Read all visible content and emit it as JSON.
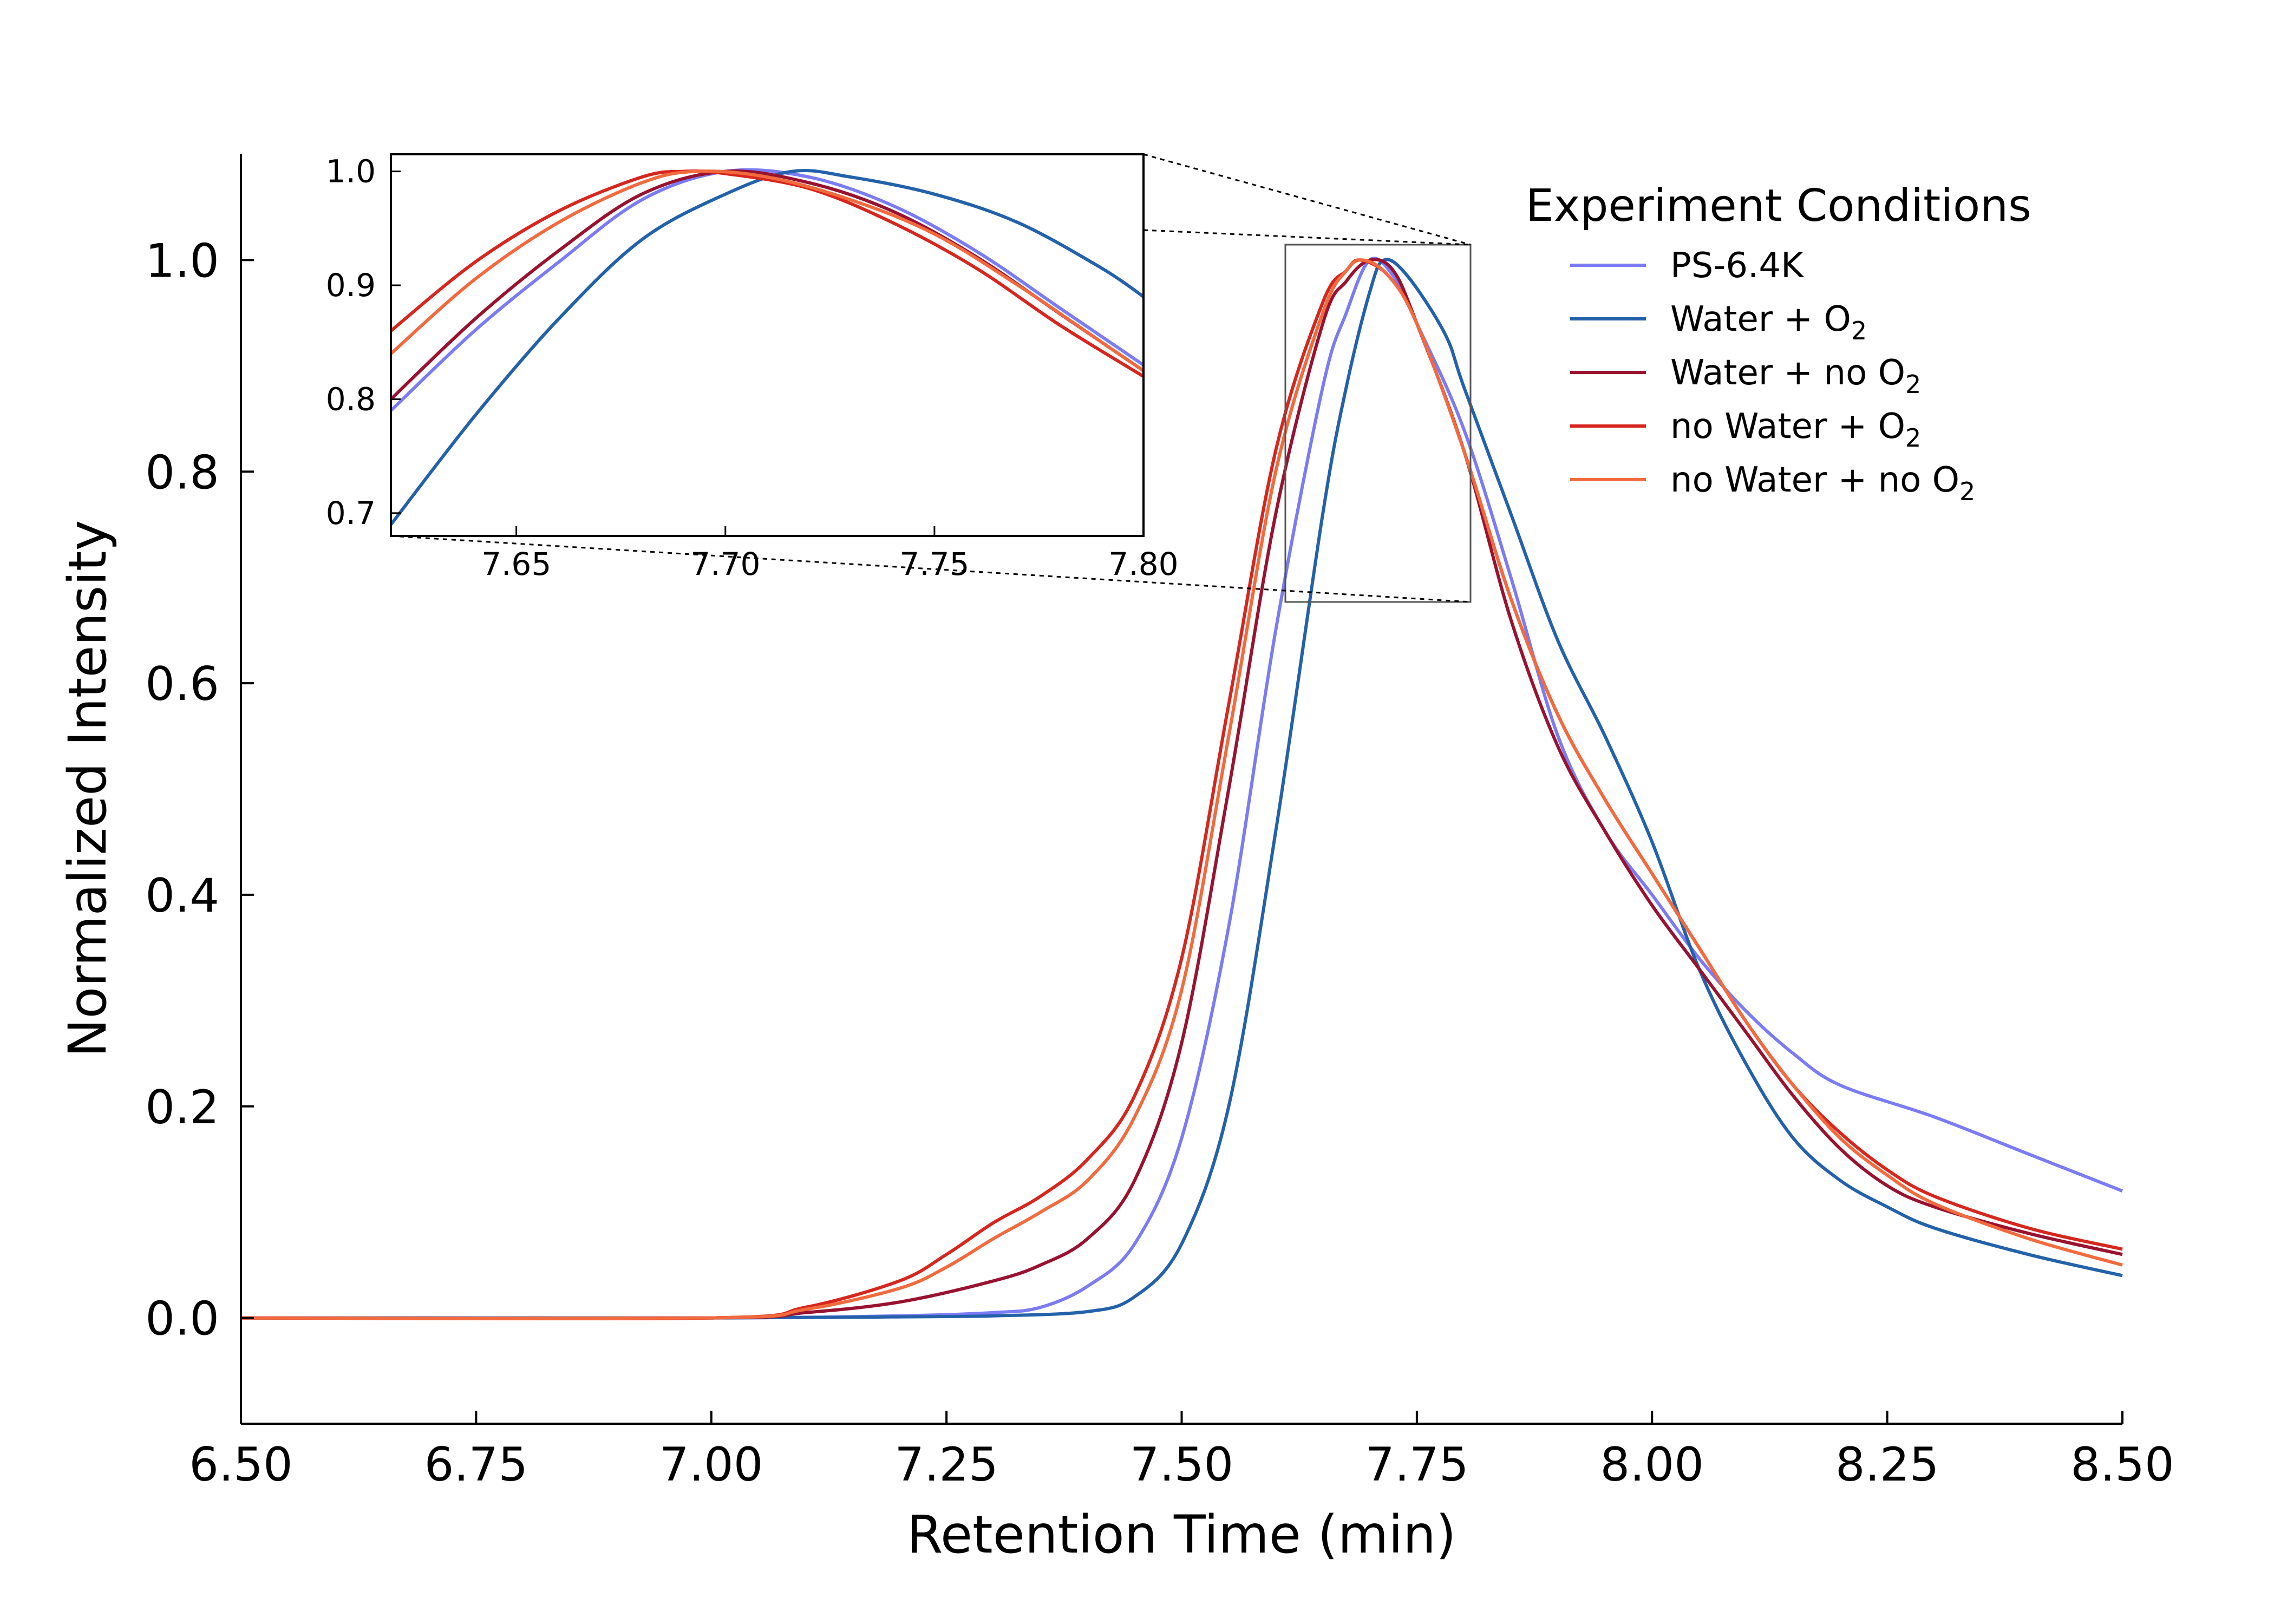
{
  "chart_data": {
    "type": "line",
    "xlabel": "Retention Time (min)",
    "ylabel": "Normalized Intensity",
    "xlim": [
      6.5,
      8.5
    ],
    "ylim": [
      -0.1,
      1.1
    ],
    "xticks": [
      "6.50",
      "6.75",
      "7.00",
      "7.25",
      "7.50",
      "7.75",
      "8.00",
      "8.25",
      "8.50"
    ],
    "yticks": [
      "0.0",
      "0.2",
      "0.4",
      "0.6",
      "0.8",
      "1.0"
    ],
    "grid": false,
    "legend": {
      "title": "Experiment Conditions",
      "placement": "top-right",
      "entries": [
        {
          "main": "PS-6.4K",
          "sub": ""
        },
        {
          "main": "Water + O",
          "sub": "2"
        },
        {
          "main": "Water + no O",
          "sub": "2"
        },
        {
          "main": "no Water + O",
          "sub": "2"
        },
        {
          "main": "no Water + no O",
          "sub": "2"
        }
      ]
    },
    "series": [
      {
        "color": "#7b7bf5",
        "points": [
          [
            6.5,
            0.0
          ],
          [
            7.0,
            0.0
          ],
          [
            7.2,
            0.002
          ],
          [
            7.3,
            0.005
          ],
          [
            7.35,
            0.01
          ],
          [
            7.4,
            0.03
          ],
          [
            7.45,
            0.07
          ],
          [
            7.5,
            0.17
          ],
          [
            7.55,
            0.37
          ],
          [
            7.6,
            0.65
          ],
          [
            7.65,
            0.88
          ],
          [
            7.675,
            0.95
          ],
          [
            7.7,
            1.0
          ],
          [
            7.725,
            0.985
          ],
          [
            7.75,
            0.94
          ],
          [
            7.8,
            0.84
          ],
          [
            7.85,
            0.7
          ],
          [
            7.9,
            0.55
          ],
          [
            7.95,
            0.46
          ],
          [
            8.0,
            0.4
          ],
          [
            8.05,
            0.34
          ],
          [
            8.1,
            0.29
          ],
          [
            8.15,
            0.25
          ],
          [
            8.2,
            0.22
          ],
          [
            8.3,
            0.19
          ],
          [
            8.4,
            0.155
          ],
          [
            8.5,
            0.12
          ]
        ]
      },
      {
        "color": "#2461ab",
        "points": [
          [
            6.5,
            0.0
          ],
          [
            7.0,
            0.0
          ],
          [
            7.2,
            0.001
          ],
          [
            7.3,
            0.002
          ],
          [
            7.4,
            0.006
          ],
          [
            7.45,
            0.02
          ],
          [
            7.5,
            0.07
          ],
          [
            7.55,
            0.2
          ],
          [
            7.6,
            0.46
          ],
          [
            7.65,
            0.76
          ],
          [
            7.675,
            0.88
          ],
          [
            7.7,
            0.97
          ],
          [
            7.715,
            1.0
          ],
          [
            7.74,
            0.985
          ],
          [
            7.78,
            0.93
          ],
          [
            7.8,
            0.88
          ],
          [
            7.85,
            0.76
          ],
          [
            7.9,
            0.64
          ],
          [
            7.95,
            0.55
          ],
          [
            8.0,
            0.45
          ],
          [
            8.05,
            0.33
          ],
          [
            8.1,
            0.24
          ],
          [
            8.15,
            0.17
          ],
          [
            8.2,
            0.13
          ],
          [
            8.25,
            0.105
          ],
          [
            8.3,
            0.085
          ],
          [
            8.4,
            0.06
          ],
          [
            8.5,
            0.04
          ]
        ]
      },
      {
        "color": "#99122f",
        "points": [
          [
            6.5,
            0.0
          ],
          [
            7.0,
            0.0
          ],
          [
            7.1,
            0.005
          ],
          [
            7.2,
            0.015
          ],
          [
            7.3,
            0.035
          ],
          [
            7.35,
            0.05
          ],
          [
            7.4,
            0.075
          ],
          [
            7.45,
            0.13
          ],
          [
            7.5,
            0.26
          ],
          [
            7.55,
            0.5
          ],
          [
            7.6,
            0.76
          ],
          [
            7.65,
            0.94
          ],
          [
            7.675,
            0.98
          ],
          [
            7.7,
            1.0
          ],
          [
            7.725,
            0.99
          ],
          [
            7.75,
            0.94
          ],
          [
            7.8,
            0.82
          ],
          [
            7.85,
            0.66
          ],
          [
            7.9,
            0.54
          ],
          [
            7.95,
            0.46
          ],
          [
            8.0,
            0.39
          ],
          [
            8.05,
            0.33
          ],
          [
            8.1,
            0.27
          ],
          [
            8.15,
            0.21
          ],
          [
            8.2,
            0.16
          ],
          [
            8.25,
            0.125
          ],
          [
            8.3,
            0.105
          ],
          [
            8.4,
            0.08
          ],
          [
            8.5,
            0.06
          ]
        ]
      },
      {
        "color": "#d7261e",
        "points": [
          [
            6.5,
            0.0
          ],
          [
            7.0,
            0.0
          ],
          [
            7.1,
            0.01
          ],
          [
            7.2,
            0.035
          ],
          [
            7.25,
            0.06
          ],
          [
            7.3,
            0.09
          ],
          [
            7.35,
            0.115
          ],
          [
            7.4,
            0.15
          ],
          [
            7.45,
            0.21
          ],
          [
            7.5,
            0.34
          ],
          [
            7.55,
            0.58
          ],
          [
            7.6,
            0.82
          ],
          [
            7.65,
            0.96
          ],
          [
            7.675,
            0.99
          ],
          [
            7.69,
            1.0
          ],
          [
            7.72,
            0.985
          ],
          [
            7.75,
            0.94
          ],
          [
            7.8,
            0.82
          ],
          [
            7.85,
            0.68
          ],
          [
            7.9,
            0.57
          ],
          [
            7.95,
            0.49
          ],
          [
            8.0,
            0.42
          ],
          [
            8.05,
            0.35
          ],
          [
            8.1,
            0.28
          ],
          [
            8.15,
            0.22
          ],
          [
            8.2,
            0.175
          ],
          [
            8.25,
            0.14
          ],
          [
            8.3,
            0.115
          ],
          [
            8.4,
            0.085
          ],
          [
            8.5,
            0.065
          ]
        ]
      },
      {
        "color": "#f26a3d",
        "points": [
          [
            6.5,
            0.0
          ],
          [
            7.0,
            0.0
          ],
          [
            7.1,
            0.008
          ],
          [
            7.2,
            0.028
          ],
          [
            7.25,
            0.048
          ],
          [
            7.3,
            0.075
          ],
          [
            7.35,
            0.1
          ],
          [
            7.4,
            0.13
          ],
          [
            7.45,
            0.19
          ],
          [
            7.5,
            0.31
          ],
          [
            7.55,
            0.55
          ],
          [
            7.6,
            0.8
          ],
          [
            7.65,
            0.95
          ],
          [
            7.675,
            0.99
          ],
          [
            7.693,
            1.0
          ],
          [
            7.72,
            0.985
          ],
          [
            7.75,
            0.94
          ],
          [
            7.8,
            0.82
          ],
          [
            7.85,
            0.68
          ],
          [
            7.9,
            0.57
          ],
          [
            7.95,
            0.49
          ],
          [
            8.0,
            0.42
          ],
          [
            8.05,
            0.35
          ],
          [
            8.1,
            0.28
          ],
          [
            8.15,
            0.22
          ],
          [
            8.2,
            0.17
          ],
          [
            8.25,
            0.135
          ],
          [
            8.3,
            0.108
          ],
          [
            8.4,
            0.075
          ],
          [
            8.5,
            0.05
          ]
        ]
      }
    ],
    "inset": {
      "xlim": [
        7.62,
        7.8
      ],
      "ylim": [
        0.68,
        1.015
      ],
      "xticks": [
        "7.65",
        "7.70",
        "7.75",
        "7.80"
      ],
      "yticks": [
        "0.7",
        "0.8",
        "0.9",
        "1.0"
      ],
      "series": [
        {
          "color": "#7b7bf5",
          "points": [
            [
              7.62,
              0.79
            ],
            [
              7.64,
              0.86
            ],
            [
              7.66,
              0.92
            ],
            [
              7.68,
              0.975
            ],
            [
              7.7,
              1.0
            ],
            [
              7.72,
              0.995
            ],
            [
              7.74,
              0.97
            ],
            [
              7.76,
              0.93
            ],
            [
              7.78,
              0.88
            ],
            [
              7.8,
              0.83
            ]
          ]
        },
        {
          "color": "#2461ab",
          "points": [
            [
              7.62,
              0.69
            ],
            [
              7.64,
              0.785
            ],
            [
              7.66,
              0.87
            ],
            [
              7.68,
              0.94
            ],
            [
              7.7,
              0.98
            ],
            [
              7.716,
              1.0
            ],
            [
              7.73,
              0.995
            ],
            [
              7.75,
              0.98
            ],
            [
              7.77,
              0.955
            ],
            [
              7.79,
              0.915
            ],
            [
              7.8,
              0.89
            ]
          ]
        },
        {
          "color": "#99122f",
          "points": [
            [
              7.62,
              0.8
            ],
            [
              7.64,
              0.87
            ],
            [
              7.66,
              0.93
            ],
            [
              7.68,
              0.98
            ],
            [
              7.7,
              1.0
            ],
            [
              7.72,
              0.99
            ],
            [
              7.74,
              0.965
            ],
            [
              7.76,
              0.925
            ],
            [
              7.78,
              0.875
            ],
            [
              7.8,
              0.825
            ]
          ]
        },
        {
          "color": "#d7261e",
          "points": [
            [
              7.62,
              0.86
            ],
            [
              7.64,
              0.92
            ],
            [
              7.66,
              0.965
            ],
            [
              7.68,
              0.995
            ],
            [
              7.69,
              1.0
            ],
            [
              7.7,
              0.998
            ],
            [
              7.72,
              0.985
            ],
            [
              7.74,
              0.955
            ],
            [
              7.76,
              0.915
            ],
            [
              7.78,
              0.865
            ],
            [
              7.8,
              0.82
            ]
          ]
        },
        {
          "color": "#f26a3d",
          "points": [
            [
              7.62,
              0.84
            ],
            [
              7.64,
              0.905
            ],
            [
              7.66,
              0.955
            ],
            [
              7.68,
              0.99
            ],
            [
              7.693,
              1.0
            ],
            [
              7.71,
              0.995
            ],
            [
              7.73,
              0.975
            ],
            [
              7.75,
              0.945
            ],
            [
              7.77,
              0.9
            ],
            [
              7.79,
              0.85
            ],
            [
              7.8,
              0.825
            ]
          ]
        }
      ]
    }
  }
}
